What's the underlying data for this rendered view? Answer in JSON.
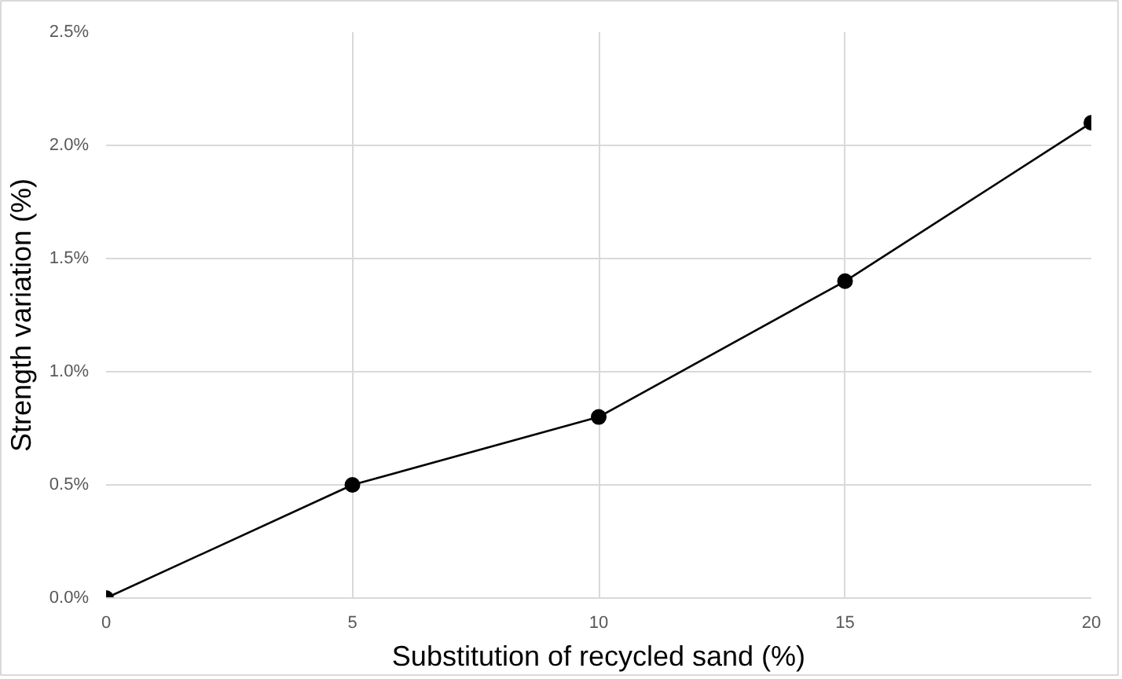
{
  "chart_data": {
    "type": "line",
    "xlabel": "Substitution of recycled sand (%)",
    "ylabel": "Strength variation (%)",
    "x": [
      0,
      5,
      10,
      15,
      20
    ],
    "series": [
      {
        "color": "#000000",
        "values": [
          0,
          0.5,
          0.8,
          1.4,
          2.1
        ]
      }
    ],
    "xlim": [
      0,
      20
    ],
    "xticks": [
      0,
      5,
      10,
      15,
      20
    ],
    "ylim": [
      0,
      2.5
    ],
    "yticks": [
      {
        "value": 0,
        "label": "0.0%"
      },
      {
        "value": 0.5,
        "label": "0.5%"
      },
      {
        "value": 1.0,
        "label": "1.0%"
      },
      {
        "value": 1.5,
        "label": "1.5%"
      },
      {
        "value": 2.0,
        "label": "2.0%"
      },
      {
        "value": 2.5,
        "label": "2.5%"
      }
    ],
    "grid": true,
    "marker": "circle",
    "line_style": "solid"
  }
}
